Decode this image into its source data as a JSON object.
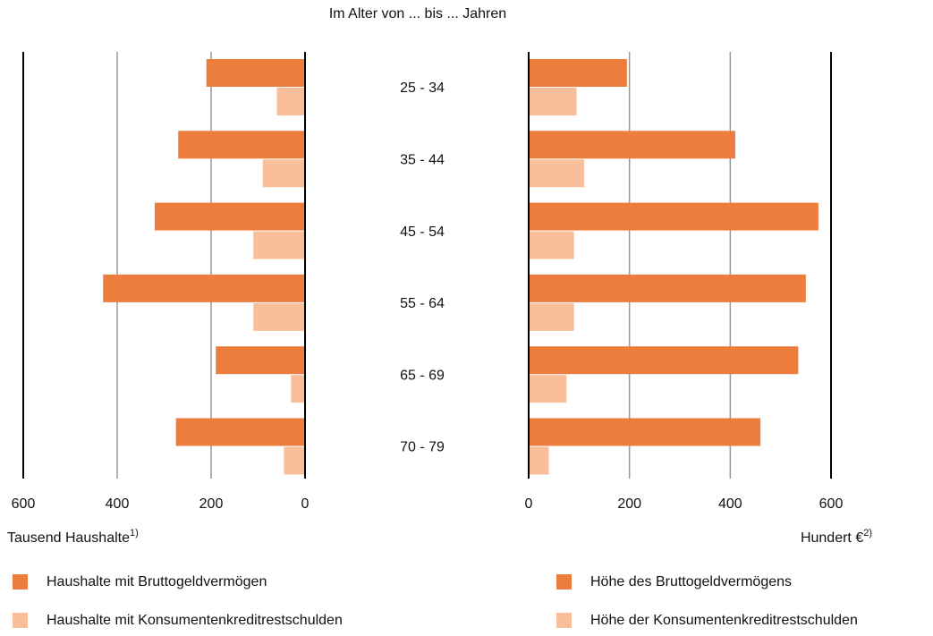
{
  "chart_data": [
    {
      "type": "bar",
      "orientation": "horizontal",
      "category_label": "Im Alter von ... bis ... Jahren",
      "categories": [
        "25 - 34",
        "35 - 44",
        "45 - 54",
        "55 - 64",
        "65 - 69",
        "70 - 79"
      ],
      "xlabel": "Tausend Haushalte",
      "xlabel_note": "1)",
      "xlim": [
        600,
        0
      ],
      "xticks": [
        600,
        400,
        200,
        0
      ],
      "grid": true,
      "series": [
        {
          "name": "Haushalte mit Bruttogeldvermögen",
          "color": "#ed7d3d",
          "values": [
            210,
            270,
            320,
            430,
            190,
            275
          ]
        },
        {
          "name": "Haushalte mit Konsumentenkreditrestschulden",
          "color": "#f8bf9a",
          "values": [
            60,
            90,
            110,
            110,
            30,
            45
          ]
        }
      ]
    },
    {
      "type": "bar",
      "orientation": "horizontal",
      "xlabel": "Hundert €",
      "xlabel_note": "2)",
      "xlim": [
        0,
        600
      ],
      "xticks": [
        0,
        200,
        400,
        600
      ],
      "grid": true,
      "series": [
        {
          "name": "Höhe des Bruttogeldvermögens",
          "color": "#ed7d3d",
          "values": [
            195,
            410,
            575,
            550,
            535,
            460
          ]
        },
        {
          "name": "Höhe der Konsumentenkreditrestschulden",
          "color": "#f8bf9a",
          "values": [
            95,
            110,
            90,
            90,
            75,
            40
          ]
        }
      ]
    }
  ]
}
